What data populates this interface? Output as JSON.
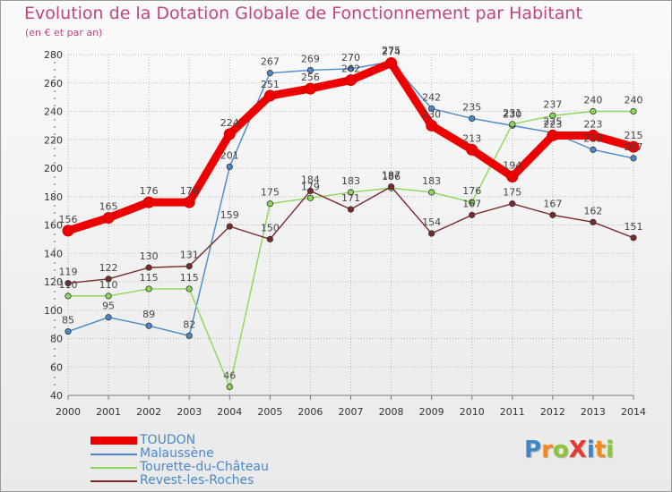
{
  "header": {
    "title": "Evolution de la Dotation Globale de Fonctionnement par Habitant",
    "subtitle": "(en € et par an)"
  },
  "logo": {
    "text": "ProXiti",
    "letters": [
      "P",
      "r",
      "o",
      "X",
      "i",
      "t",
      "i"
    ]
  },
  "colors": {
    "title": "#c0467a",
    "axis": "#cc3366",
    "grid": "#b8b8b8",
    "label": "#555555",
    "legend_text": "#4a89c9"
  },
  "chart_data": {
    "type": "line",
    "title": "Evolution de la Dotation Globale de Fonctionnement par Habitant",
    "subtitle": "(en € et par an)",
    "xlabel": "",
    "ylabel": "",
    "x": [
      "2000",
      "2001",
      "2002",
      "2003",
      "2004",
      "2005",
      "2006",
      "2007",
      "2008",
      "2009",
      "2010",
      "2011",
      "2012",
      "2013",
      "2014"
    ],
    "ylim": [
      40,
      280
    ],
    "yticks": [
      40,
      60,
      80,
      100,
      120,
      140,
      160,
      180,
      200,
      220,
      240,
      260,
      280
    ],
    "grid": "horizontal",
    "legend_position": "bottom-left",
    "series": [
      {
        "name": "TOUDON",
        "color": "#ee0000",
        "values": [
          156,
          165,
          176,
          176,
          224,
          251,
          256,
          262,
          274,
          230,
          213,
          194,
          223,
          223,
          215
        ],
        "labels": [
          "156",
          "165",
          "176",
          "176",
          "224",
          "251",
          "256",
          "262",
          "274",
          "230",
          "213",
          "194",
          "223",
          "223",
          "215"
        ]
      },
      {
        "name": "Malaussène",
        "color": "#4a89c9",
        "values": [
          85,
          95,
          89,
          82,
          201,
          267,
          269,
          270,
          275,
          242,
          235,
          230,
          225,
          213,
          207
        ],
        "labels": [
          "85",
          "95",
          "89",
          "82",
          "201",
          "267",
          "269",
          "270",
          "275",
          "242",
          "235",
          "230",
          "225",
          "213",
          "207"
        ]
      },
      {
        "name": "Tourette-du-Château",
        "color": "#8cd65a",
        "values": [
          110,
          110,
          115,
          115,
          46,
          175,
          179,
          183,
          186,
          183,
          176,
          231,
          237,
          240,
          240
        ],
        "labels": [
          "110",
          "110",
          "115",
          "115",
          "46",
          "175",
          "179",
          "183",
          "186",
          "183",
          "176",
          "231",
          "237",
          "240",
          "240"
        ]
      },
      {
        "name": "Revest-les-Roches",
        "color": "#7a2a2a",
        "values": [
          119,
          122,
          130,
          131,
          159,
          150,
          184,
          171,
          187,
          154,
          167,
          175,
          167,
          162,
          151
        ],
        "labels": [
          "119",
          "122",
          "130",
          "131",
          "159",
          "150",
          "184",
          "171",
          "187",
          "154",
          "167",
          "175",
          "167",
          "162",
          "151"
        ]
      }
    ]
  }
}
